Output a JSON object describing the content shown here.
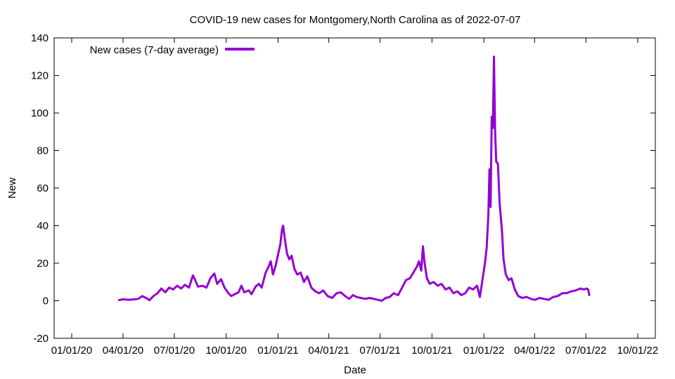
{
  "chart_data": {
    "type": "line",
    "title": "COVID-19 new cases for Montgomery,North Carolina as of 2022-07-07",
    "xlabel": "Date",
    "ylabel": "New",
    "ylim": [
      -20,
      140
    ],
    "yticks": [
      -20,
      0,
      20,
      40,
      60,
      80,
      100,
      120,
      140
    ],
    "xlim": [
      "2020-01-01",
      "2022-10-01"
    ],
    "xticks": [
      {
        "date": "2020-01-01",
        "label": "01/01/20"
      },
      {
        "date": "2020-04-01",
        "label": "04/01/20"
      },
      {
        "date": "2020-07-01",
        "label": "07/01/20"
      },
      {
        "date": "2020-10-01",
        "label": "10/01/20"
      },
      {
        "date": "2021-01-01",
        "label": "01/01/21"
      },
      {
        "date": "2021-04-01",
        "label": "04/01/21"
      },
      {
        "date": "2021-07-01",
        "label": "07/01/21"
      },
      {
        "date": "2021-10-01",
        "label": "10/01/21"
      },
      {
        "date": "2022-01-01",
        "label": "01/01/22"
      },
      {
        "date": "2022-04-01",
        "label": "04/01/22"
      },
      {
        "date": "2022-07-01",
        "label": "07/01/22"
      },
      {
        "date": "2022-10-01",
        "label": "10/01/22"
      }
    ],
    "grid": false,
    "legend_position": "top-left",
    "series": [
      {
        "name": "New cases (7-day average)",
        "color": "#9400d3",
        "points": [
          [
            "2020-03-25",
            0.3
          ],
          [
            "2020-04-01",
            0.8
          ],
          [
            "2020-04-10",
            0.5
          ],
          [
            "2020-04-20",
            0.7
          ],
          [
            "2020-04-28",
            1.0
          ],
          [
            "2020-05-05",
            2.5
          ],
          [
            "2020-05-12",
            1.5
          ],
          [
            "2020-05-18",
            0.3
          ],
          [
            "2020-05-25",
            2.5
          ],
          [
            "2020-06-01",
            4.0
          ],
          [
            "2020-06-08",
            6.5
          ],
          [
            "2020-06-15",
            4.5
          ],
          [
            "2020-06-22",
            7.0
          ],
          [
            "2020-06-29",
            6.0
          ],
          [
            "2020-07-06",
            8.0
          ],
          [
            "2020-07-13",
            6.5
          ],
          [
            "2020-07-20",
            8.5
          ],
          [
            "2020-07-27",
            7.0
          ],
          [
            "2020-08-03",
            13.5
          ],
          [
            "2020-08-07",
            11.0
          ],
          [
            "2020-08-12",
            7.5
          ],
          [
            "2020-08-20",
            8.0
          ],
          [
            "2020-08-27",
            7.0
          ],
          [
            "2020-09-03",
            12.0
          ],
          [
            "2020-09-10",
            14.5
          ],
          [
            "2020-09-15",
            9.0
          ],
          [
            "2020-09-22",
            11.5
          ],
          [
            "2020-09-28",
            7.0
          ],
          [
            "2020-10-05",
            4.0
          ],
          [
            "2020-10-10",
            2.5
          ],
          [
            "2020-10-16",
            3.5
          ],
          [
            "2020-10-23",
            4.5
          ],
          [
            "2020-10-28",
            8.0
          ],
          [
            "2020-11-02",
            4.5
          ],
          [
            "2020-11-10",
            5.5
          ],
          [
            "2020-11-15",
            3.5
          ],
          [
            "2020-11-22",
            7.5
          ],
          [
            "2020-11-28",
            9.0
          ],
          [
            "2020-12-03",
            7.0
          ],
          [
            "2020-12-10",
            15.0
          ],
          [
            "2020-12-15",
            18.0
          ],
          [
            "2020-12-19",
            21.0
          ],
          [
            "2020-12-23",
            14.0
          ],
          [
            "2020-12-28",
            19.0
          ],
          [
            "2021-01-02",
            26.0
          ],
          [
            "2021-01-05",
            30.0
          ],
          [
            "2021-01-08",
            38.0
          ],
          [
            "2021-01-10",
            40.0
          ],
          [
            "2021-01-13",
            33.0
          ],
          [
            "2021-01-17",
            25.0
          ],
          [
            "2021-01-21",
            22.0
          ],
          [
            "2021-01-25",
            24.0
          ],
          [
            "2021-01-30",
            17.0
          ],
          [
            "2021-02-04",
            14.0
          ],
          [
            "2021-02-10",
            15.0
          ],
          [
            "2021-02-16",
            10.0
          ],
          [
            "2021-02-22",
            13.0
          ],
          [
            "2021-03-01",
            7.0
          ],
          [
            "2021-03-08",
            5.0
          ],
          [
            "2021-03-15",
            4.0
          ],
          [
            "2021-03-22",
            5.5
          ],
          [
            "2021-03-30",
            2.5
          ],
          [
            "2021-04-07",
            1.5
          ],
          [
            "2021-04-15",
            4.0
          ],
          [
            "2021-04-22",
            4.5
          ],
          [
            "2021-04-30",
            2.5
          ],
          [
            "2021-05-07",
            1.0
          ],
          [
            "2021-05-14",
            3.0
          ],
          [
            "2021-05-20",
            2.0
          ],
          [
            "2021-05-28",
            1.5
          ],
          [
            "2021-06-05",
            1.0
          ],
          [
            "2021-06-12",
            1.5
          ],
          [
            "2021-06-20",
            1.0
          ],
          [
            "2021-06-27",
            0.5
          ],
          [
            "2021-07-04",
            0.0
          ],
          [
            "2021-07-11",
            1.5
          ],
          [
            "2021-07-18",
            2.0
          ],
          [
            "2021-07-25",
            4.0
          ],
          [
            "2021-08-02",
            3.0
          ],
          [
            "2021-08-09",
            7.0
          ],
          [
            "2021-08-16",
            11.0
          ],
          [
            "2021-08-23",
            12.0
          ],
          [
            "2021-08-29",
            15.0
          ],
          [
            "2021-09-04",
            18.0
          ],
          [
            "2021-09-08",
            21.0
          ],
          [
            "2021-09-12",
            16.0
          ],
          [
            "2021-09-15",
            29.0
          ],
          [
            "2021-09-18",
            20.0
          ],
          [
            "2021-09-22",
            12.0
          ],
          [
            "2021-09-27",
            9.0
          ],
          [
            "2021-10-04",
            10.0
          ],
          [
            "2021-10-11",
            8.0
          ],
          [
            "2021-10-18",
            9.0
          ],
          [
            "2021-10-25",
            6.0
          ],
          [
            "2021-11-01",
            7.0
          ],
          [
            "2021-11-08",
            4.0
          ],
          [
            "2021-11-15",
            5.0
          ],
          [
            "2021-11-22",
            3.0
          ],
          [
            "2021-11-29",
            4.0
          ],
          [
            "2021-12-06",
            7.0
          ],
          [
            "2021-12-13",
            6.0
          ],
          [
            "2021-12-20",
            8.0
          ],
          [
            "2021-12-25",
            2.0
          ],
          [
            "2021-12-29",
            10.0
          ],
          [
            "2022-01-03",
            20.0
          ],
          [
            "2022-01-06",
            28.0
          ],
          [
            "2022-01-09",
            45.0
          ],
          [
            "2022-01-11",
            70.0
          ],
          [
            "2022-01-13",
            50.0
          ],
          [
            "2022-01-15",
            98.0
          ],
          [
            "2022-01-17",
            92.0
          ],
          [
            "2022-01-19",
            130.0
          ],
          [
            "2022-01-21",
            90.0
          ],
          [
            "2022-01-23",
            74.0
          ],
          [
            "2022-01-26",
            73.0
          ],
          [
            "2022-01-29",
            52.0
          ],
          [
            "2022-02-02",
            38.0
          ],
          [
            "2022-02-05",
            22.0
          ],
          [
            "2022-02-09",
            14.0
          ],
          [
            "2022-02-14",
            11.0
          ],
          [
            "2022-02-19",
            12.0
          ],
          [
            "2022-02-25",
            6.0
          ],
          [
            "2022-03-03",
            2.5
          ],
          [
            "2022-03-10",
            1.5
          ],
          [
            "2022-03-18",
            2.0
          ],
          [
            "2022-03-25",
            1.0
          ],
          [
            "2022-04-02",
            0.5
          ],
          [
            "2022-04-10",
            1.5
          ],
          [
            "2022-04-18",
            1.0
          ],
          [
            "2022-04-26",
            0.5
          ],
          [
            "2022-05-04",
            2.0
          ],
          [
            "2022-05-12",
            2.5
          ],
          [
            "2022-05-20",
            4.0
          ],
          [
            "2022-05-28",
            4.0
          ],
          [
            "2022-06-05",
            5.0
          ],
          [
            "2022-06-13",
            5.5
          ],
          [
            "2022-06-21",
            6.5
          ],
          [
            "2022-06-28",
            6.0
          ],
          [
            "2022-07-02",
            6.5
          ],
          [
            "2022-07-05",
            6.0
          ],
          [
            "2022-07-07",
            3.0
          ]
        ]
      }
    ]
  }
}
